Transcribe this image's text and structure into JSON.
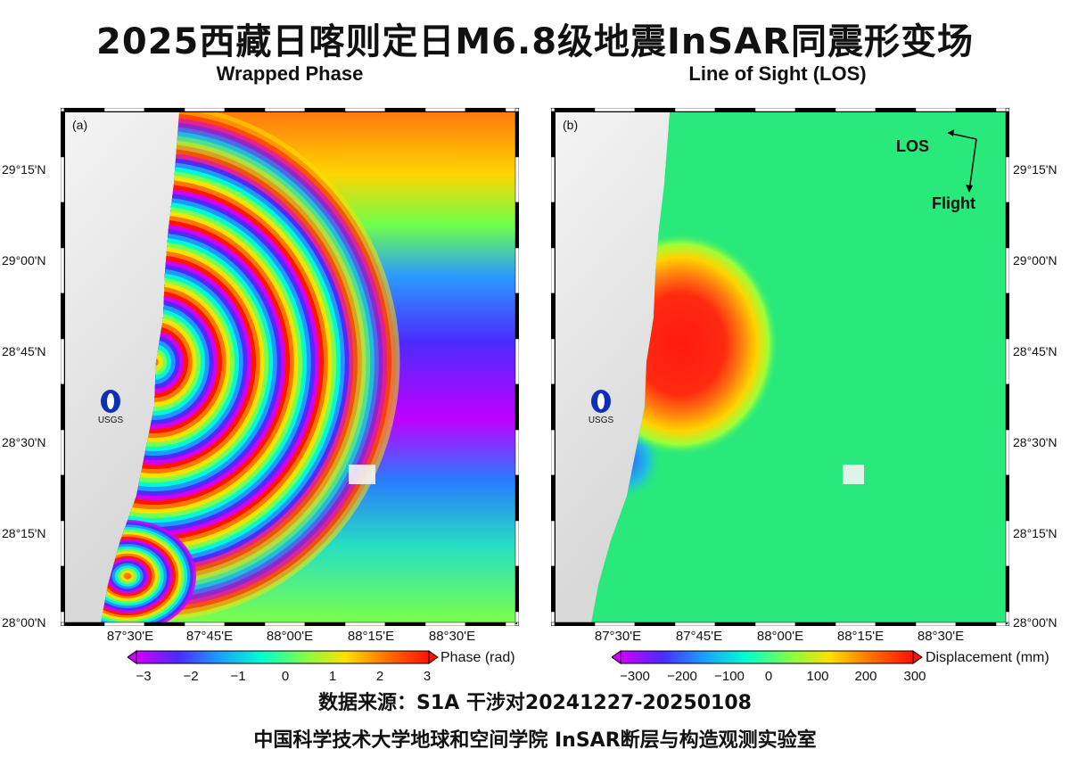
{
  "title": "2025西藏日喀则定日M6.8级地震InSAR同震形变场",
  "panels": [
    {
      "subtitle": "Wrapped Phase",
      "label": "(a)",
      "logo_text": "USGS",
      "colorbar": {
        "title": "Phase (rad)",
        "ticks": [
          "−3",
          "−2",
          "−1",
          "0",
          "1",
          "2",
          "3"
        ],
        "colors": [
          "#d000ff",
          "#4b2bff",
          "#1aa0ff",
          "#00ffd0",
          "#7dff4a",
          "#ffe000",
          "#ff7000",
          "#ff1000"
        ]
      }
    },
    {
      "subtitle": "Line of Sight (LOS)",
      "label": "(b)",
      "logo_text": "USGS",
      "los_label": "LOS",
      "flight_label": "Flight",
      "colorbar": {
        "title": "Displacement (mm)",
        "ticks": [
          "−300",
          "−200",
          "−100",
          "0",
          "100",
          "200",
          "300"
        ],
        "colors": [
          "#d000ff",
          "#4b2bff",
          "#1aa0ff",
          "#00ffd0",
          "#7dff4a",
          "#ffe000",
          "#ff7000",
          "#ff1000"
        ]
      }
    }
  ],
  "lat_labels": [
    "29°15'N",
    "29°00'N",
    "28°45'N",
    "28°30'N",
    "28°15'N",
    "28°00'N"
  ],
  "lon_labels": [
    "87°30'E",
    "87°45'E",
    "88°00'E",
    "88°15'E",
    "88°30'E"
  ],
  "footer_line1": "数据来源：S1A 干涉对20241227-20250108",
  "footer_line2": "中国科学技术大学地球和空间学院   InSAR断层与构造观测实验室",
  "colors": {
    "los_field_green": "#2bec7a",
    "uplift_red": "#ff1a10",
    "usgs_blue": "#0f2fb8"
  }
}
